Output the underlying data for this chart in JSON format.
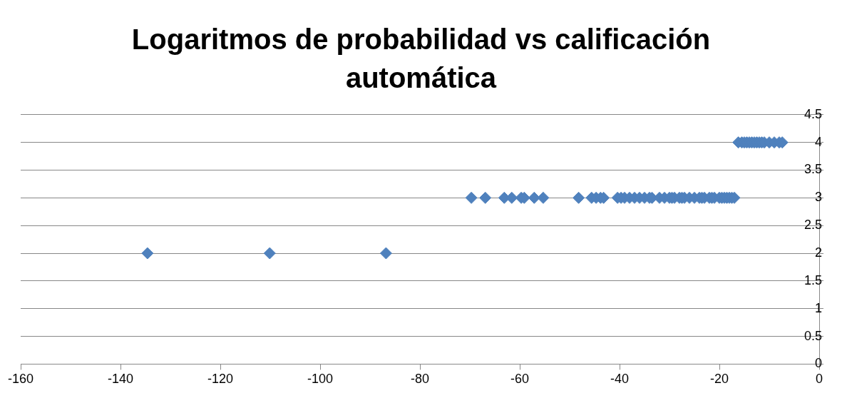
{
  "chart_data": {
    "type": "scatter",
    "title": "Logaritmos de probabilidad vs calificación automática",
    "x": [
      -134.6,
      -110.1,
      -86.8,
      -69.7,
      -66.9,
      -63.1,
      -61.6,
      -59.7,
      -59.1,
      -57.1,
      -55.3,
      -48.2,
      -45.6,
      -44.7,
      -43.8,
      -43.2,
      -40.4,
      -39.7,
      -39,
      -38,
      -37,
      -36,
      -35,
      -34,
      -33.5,
      -32,
      -31,
      -30,
      -29.5,
      -29,
      -28,
      -27.5,
      -27,
      -26,
      -25,
      -24,
      -23.5,
      -23,
      -22,
      -21.5,
      -21,
      -20,
      -19.5,
      -19,
      -18.5,
      -18,
      -17.5,
      -17,
      -16.2,
      -15.5,
      -15,
      -14.5,
      -14,
      -13.5,
      -13,
      -12.5,
      -12,
      -11.5,
      -11,
      -10,
      -9,
      -8,
      -7.4
    ],
    "values": [
      2,
      2,
      2,
      3,
      3,
      3,
      3,
      3,
      3,
      3,
      3,
      3,
      3,
      3,
      3,
      3,
      3,
      3,
      3,
      3,
      3,
      3,
      3,
      3,
      3,
      3,
      3,
      3,
      3,
      3,
      3,
      3,
      3,
      3,
      3,
      3,
      3,
      3,
      3,
      3,
      3,
      3,
      3,
      3,
      3,
      3,
      3,
      3,
      4,
      4,
      4,
      4,
      4,
      4,
      4,
      4,
      4,
      4,
      4,
      4,
      4,
      4,
      4
    ],
    "color": "#4f81bd",
    "marker": "diamond",
    "grid": "y",
    "legend": false,
    "xlim": [
      -160,
      0
    ],
    "xticks": [
      -160,
      -140,
      -120,
      -100,
      -80,
      -60,
      -40,
      -20,
      0
    ],
    "ylim": [
      0,
      4.5
    ],
    "yticks": [
      0,
      0.5,
      1,
      1.5,
      2,
      2.5,
      3,
      3.5,
      4,
      4.5
    ]
  }
}
